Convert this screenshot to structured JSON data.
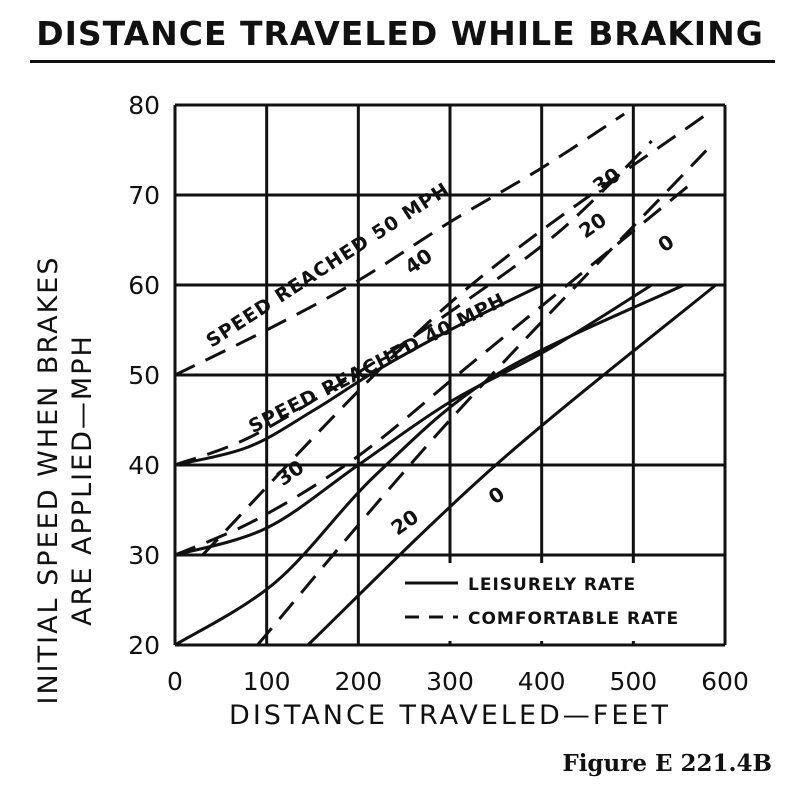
{
  "chart_data": {
    "type": "line",
    "title": "DISTANCE TRAVELED WHILE BRAKING",
    "xlabel": "DISTANCE TRAVELED—FEET",
    "ylabel": "INITIAL SPEED WHEN BRAKES\nARE APPLIED—MPH",
    "caption": "Figure E 221.4B",
    "xlim": [
      0,
      600
    ],
    "ylim": [
      20,
      80
    ],
    "xticks": [
      0,
      100,
      200,
      300,
      400,
      500,
      600
    ],
    "yticks": [
      20,
      30,
      40,
      50,
      60,
      70,
      80
    ],
    "grid": true,
    "legend": {
      "position": "bottom-right",
      "entries": [
        {
          "label": "LEISURELY RATE",
          "style": "solid"
        },
        {
          "label": "COMFORTABLE RATE",
          "style": "dashed"
        }
      ]
    },
    "curve_labels": {
      "speed_50": "SPEED REACHED 50 MPH",
      "speed_40": "SPEED REACHED 40 MPH"
    },
    "series": [
      {
        "name": "0",
        "style": "solid",
        "points": [
          [
            145,
            20
          ],
          [
            350,
            40
          ],
          [
            590,
            60
          ]
        ]
      },
      {
        "name": "20",
        "style": "solid",
        "points": [
          [
            0,
            20
          ],
          [
            110,
            27
          ],
          [
            220,
            39
          ],
          [
            350,
            50
          ],
          [
            555,
            60
          ]
        ]
      },
      {
        "name": "30",
        "style": "solid",
        "points": [
          [
            0,
            30
          ],
          [
            100,
            33
          ],
          [
            200,
            40
          ],
          [
            300,
            47
          ],
          [
            410,
            53
          ],
          [
            520,
            60
          ]
        ]
      },
      {
        "name": "40",
        "style": "solid",
        "points": [
          [
            0,
            40
          ],
          [
            80,
            42
          ],
          [
            150,
            46
          ],
          [
            220,
            50.5
          ],
          [
            300,
            55
          ],
          [
            400,
            60
          ]
        ]
      },
      {
        "name": "0",
        "style": "dashed",
        "points": [
          [
            90,
            20
          ],
          [
            300,
            45
          ],
          [
            580,
            75
          ]
        ]
      },
      {
        "name": "20",
        "style": "dashed",
        "points": [
          [
            30,
            30
          ],
          [
            300,
            58
          ],
          [
            580,
            79
          ]
        ]
      },
      {
        "name": "30",
        "style": "dashed",
        "points": [
          [
            0,
            30
          ],
          [
            90,
            34
          ],
          [
            200,
            41
          ],
          [
            320,
            51
          ],
          [
            440,
            61
          ],
          [
            560,
            71
          ]
        ]
      },
      {
        "name": "40",
        "style": "dashed",
        "points": [
          [
            0,
            40
          ],
          [
            80,
            43
          ],
          [
            180,
            49
          ],
          [
            300,
            57
          ],
          [
            420,
            66
          ],
          [
            520,
            76
          ]
        ]
      },
      {
        "name": "50",
        "style": "dashed",
        "points": [
          [
            0,
            50
          ],
          [
            100,
            55
          ],
          [
            200,
            60.5
          ],
          [
            300,
            67
          ],
          [
            400,
            73
          ],
          [
            490,
            79
          ]
        ]
      }
    ],
    "series_labels": [
      {
        "text": "0",
        "x": 355,
        "y": 36
      },
      {
        "text": "20",
        "x": 255,
        "y": 33
      },
      {
        "text": "30",
        "x": 130,
        "y": 38.5
      },
      {
        "text": "40",
        "x": 270,
        "y": 62
      },
      {
        "text": "0",
        "x": 540,
        "y": 64
      },
      {
        "text": "20",
        "x": 460,
        "y": 66
      },
      {
        "text": "30",
        "x": 475,
        "y": 71
      }
    ]
  }
}
